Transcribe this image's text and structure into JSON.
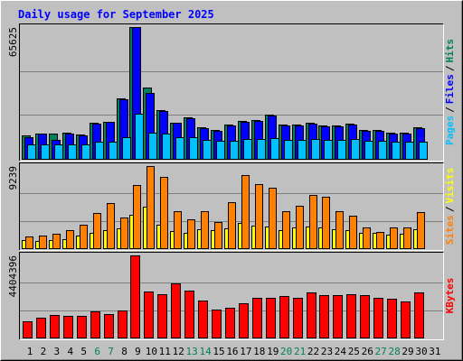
{
  "chart_data": [
    {
      "type": "bar",
      "title": "Daily usage for September 2025",
      "separator": "/",
      "ylim": [
        0,
        65625
      ],
      "yticks": [
        65625
      ],
      "series": [
        {
          "name": "Hits",
          "color": "#00805c",
          "values": [
            11700,
            12600,
            12600,
            13100,
            12200,
            18000,
            18500,
            30100,
            65625,
            35500,
            24300,
            18000,
            20700,
            15700,
            14400,
            17100,
            18900,
            19300,
            22000,
            17100,
            17100,
            18000,
            16600,
            16600,
            17500,
            14400,
            14400,
            13100,
            13100,
            15700,
            null
          ]
        },
        {
          "name": "Files",
          "color": "#0000ff",
          "values": [
            10800,
            12600,
            9500,
            12600,
            11700,
            17500,
            18500,
            29700,
            65600,
            32800,
            23800,
            18000,
            20200,
            15300,
            13900,
            16600,
            18500,
            18900,
            21600,
            16600,
            16600,
            17500,
            16200,
            16200,
            17100,
            13900,
            13900,
            12600,
            12600,
            15300,
            null
          ]
        },
        {
          "name": "Pages",
          "color": "#00c0ff",
          "values": [
            7200,
            7200,
            7200,
            7200,
            7200,
            8500,
            8500,
            10800,
            22500,
            13000,
            12600,
            10800,
            10800,
            9400,
            9000,
            9000,
            9900,
            9900,
            10300,
            9400,
            9400,
            9900,
            9400,
            9400,
            9900,
            9000,
            9000,
            8500,
            8500,
            8500,
            null
          ]
        }
      ]
    },
    {
      "type": "bar",
      "separator": "/",
      "ylim": [
        0,
        9239
      ],
      "yticks": [
        9239
      ],
      "series": [
        {
          "name": "Visits",
          "color": "#ffff00",
          "values": [
            924,
            822,
            924,
            1027,
            1438,
            1746,
            2054,
            2259,
            3800,
            4622,
            2670,
            1951,
            1746,
            2157,
            2054,
            2259,
            2876,
            2568,
            2465,
            2054,
            2362,
            2465,
            2362,
            2157,
            2054,
            1746,
            1746,
            1541,
            1643,
            2157,
            null
          ]
        },
        {
          "name": "Sites",
          "color": "#ff8000",
          "values": [
            1335,
            1438,
            1643,
            2054,
            2670,
            4005,
            5032,
            3492,
            7086,
            9239,
            8011,
            4211,
            3286,
            4211,
            2978,
            5135,
            8216,
            7189,
            6778,
            4211,
            4724,
            5957,
            5751,
            4211,
            3697,
            2362,
            1849,
            2362,
            2362,
            4108,
            null
          ]
        }
      ]
    },
    {
      "type": "bar",
      "ylim": [
        0,
        4404396
      ],
      "yticks": [
        4404396
      ],
      "categories": [
        "1",
        "2",
        "3",
        "4",
        "5",
        "6",
        "7",
        "8",
        "9",
        "10",
        "11",
        "12",
        "13",
        "14",
        "15",
        "16",
        "17",
        "18",
        "19",
        "20",
        "21",
        "22",
        "23",
        "24",
        "25",
        "26",
        "27",
        "28",
        "29",
        "30",
        "31"
      ],
      "category_colors": [
        "#000000",
        "#000000",
        "#000000",
        "#000000",
        "#000000",
        "#00805c",
        "#00805c",
        "#000000",
        "#000000",
        "#000000",
        "#000000",
        "#000000",
        "#00805c",
        "#00805c",
        "#000000",
        "#000000",
        "#000000",
        "#000000",
        "#000000",
        "#00805c",
        "#00805c",
        "#000000",
        "#000000",
        "#000000",
        "#000000",
        "#000000",
        "#00805c",
        "#00805c",
        "#000000",
        "#000000",
        "#000000"
      ],
      "series": [
        {
          "name": "KBytes",
          "color": "#ff0000",
          "values": [
            880900,
            1076600,
            1223500,
            1174500,
            1174500,
            1419200,
            1272400,
            1468100,
            4404396,
            2446900,
            2300100,
            2887300,
            2495800,
            2006500,
            1517100,
            1615000,
            1859600,
            2153300,
            2153300,
            2202200,
            2153300,
            2398000,
            2251100,
            2251100,
            2300100,
            2251100,
            2153300,
            2104300,
            1957500,
            2398000,
            null
          ]
        }
      ]
    }
  ]
}
